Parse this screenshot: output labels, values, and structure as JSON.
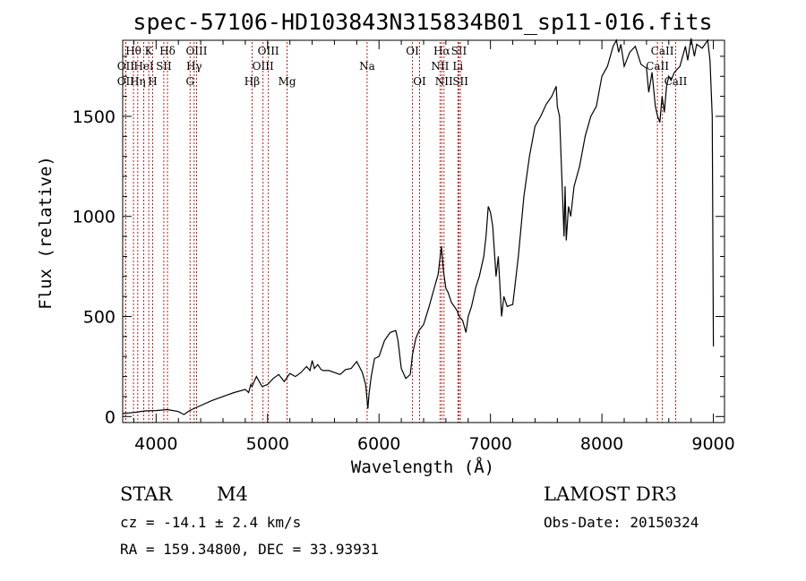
{
  "chart_data": {
    "type": "line",
    "title": "spec-57106-HD103843N315834B01_sp11-016.fits",
    "xlabel": "Wavelength (Å)",
    "ylabel": "Flux (relative)",
    "xlim": [
      3700,
      9100
    ],
    "ylim": [
      -30,
      1880
    ],
    "x_ticks": [
      4000,
      5000,
      6000,
      7000,
      8000,
      9000
    ],
    "y_ticks": [
      0,
      500,
      1000,
      1500
    ],
    "series": [
      {
        "name": "flux",
        "x": [
          3700,
          3800,
          3900,
          4000,
          4100,
          4200,
          4250,
          4300,
          4400,
          4500,
          4600,
          4700,
          4800,
          4830,
          4850,
          4860,
          4880,
          4900,
          4950,
          5000,
          5050,
          5100,
          5150,
          5200,
          5250,
          5300,
          5350,
          5380,
          5400,
          5420,
          5450,
          5480,
          5500,
          5550,
          5600,
          5650,
          5700,
          5750,
          5800,
          5850,
          5880,
          5900,
          5910,
          5930,
          5960,
          6000,
          6050,
          6100,
          6150,
          6170,
          6200,
          6240,
          6280,
          6300,
          6330,
          6360,
          6400,
          6450,
          6500,
          6530,
          6560,
          6580,
          6600,
          6620,
          6650,
          6700,
          6720,
          6750,
          6780,
          6800,
          6830,
          6850,
          6870,
          6900,
          6940,
          6960,
          6980,
          7000,
          7020,
          7050,
          7070,
          7100,
          7120,
          7150,
          7200,
          7250,
          7300,
          7350,
          7400,
          7450,
          7500,
          7550,
          7590,
          7600,
          7620,
          7650,
          7660,
          7670,
          7680,
          7700,
          7720,
          7750,
          7800,
          7850,
          7900,
          7950,
          8000,
          8050,
          8100,
          8130,
          8150,
          8170,
          8200,
          8250,
          8300,
          8350,
          8400,
          8420,
          8450,
          8480,
          8500,
          8520,
          8540,
          8560,
          8580,
          8600,
          8620,
          8650,
          8700,
          8750,
          8770,
          8800,
          8830,
          8850,
          8900,
          8950,
          8970,
          8990,
          9000
        ],
        "y": [
          15,
          20,
          28,
          30,
          35,
          25,
          10,
          30,
          55,
          80,
          100,
          120,
          135,
          120,
          160,
          150,
          175,
          200,
          150,
          160,
          190,
          210,
          175,
          215,
          200,
          220,
          250,
          230,
          280,
          240,
          260,
          235,
          230,
          230,
          220,
          210,
          235,
          240,
          275,
          220,
          160,
          40,
          110,
          200,
          290,
          300,
          380,
          420,
          430,
          380,
          240,
          190,
          210,
          310,
          390,
          430,
          460,
          550,
          650,
          710,
          850,
          720,
          640,
          620,
          570,
          530,
          500,
          480,
          420,
          500,
          550,
          600,
          650,
          700,
          800,
          900,
          1050,
          1020,
          950,
          700,
          800,
          500,
          600,
          550,
          560,
          800,
          1100,
          1300,
          1450,
          1500,
          1560,
          1600,
          1650,
          1550,
          1500,
          1050,
          900,
          1150,
          880,
          1050,
          1000,
          1150,
          1250,
          1400,
          1500,
          1550,
          1700,
          1750,
          1850,
          1880,
          1820,
          1860,
          1750,
          1820,
          1850,
          1760,
          1740,
          1620,
          1720,
          1550,
          1500,
          1470,
          1600,
          1520,
          1650,
          1700,
          1680,
          1720,
          1750,
          1850,
          1780,
          1890,
          1800,
          1860,
          1840,
          1880,
          1780,
          1500,
          350
        ]
      }
    ],
    "spectral_lines": [
      {
        "label": "Hθ",
        "x": 3797,
        "row": 1
      },
      {
        "label": "OII",
        "x": 3727,
        "row": 2
      },
      {
        "label": "OII",
        "x": 3727,
        "row": 3
      },
      {
        "label": "K",
        "x": 3934,
        "row": 1
      },
      {
        "label": "HeI",
        "x": 3889,
        "row": 2
      },
      {
        "label": "Hη",
        "x": 3835,
        "row": 3
      },
      {
        "label": "SII",
        "x": 4069,
        "row": 2
      },
      {
        "label": "H",
        "x": 3969,
        "row": 3
      },
      {
        "label": "Hδ",
        "x": 4102,
        "row": 1
      },
      {
        "label": "OIII",
        "x": 4363,
        "row": 1
      },
      {
        "label": "Hγ",
        "x": 4341,
        "row": 2
      },
      {
        "label": "G",
        "x": 4305,
        "row": 3
      },
      {
        "label": "OIII",
        "x": 5007,
        "row": 1
      },
      {
        "label": "OIII",
        "x": 4959,
        "row": 2
      },
      {
        "label": "Hβ",
        "x": 4861,
        "row": 3
      },
      {
        "label": "Mg",
        "x": 5175,
        "row": 3
      },
      {
        "label": "Na",
        "x": 5893,
        "row": 2
      },
      {
        "label": "OI",
        "x": 6300,
        "row": 1
      },
      {
        "label": "OI",
        "x": 6364,
        "row": 3
      },
      {
        "label": "Hα",
        "x": 6563,
        "row": 1
      },
      {
        "label": "SII",
        "x": 6717,
        "row": 1
      },
      {
        "label": "NII",
        "x": 6548,
        "row": 2
      },
      {
        "label": "Li",
        "x": 6708,
        "row": 2
      },
      {
        "label": "NII",
        "x": 6583,
        "row": 3
      },
      {
        "label": "SII",
        "x": 6731,
        "row": 3
      },
      {
        "label": "CaII",
        "x": 8542,
        "row": 1
      },
      {
        "label": "CaII",
        "x": 8498,
        "row": 2
      },
      {
        "label": "CaII",
        "x": 8662,
        "row": 3
      }
    ]
  },
  "info": {
    "object_class": "STAR",
    "subclass": "M4",
    "survey": "LAMOST DR3",
    "redshift": "cz = -14.1 ± 2.4 km/s",
    "obs_date": "Obs-Date: 20150324",
    "coords": "RA = 159.34800, DEC =  33.93931"
  }
}
